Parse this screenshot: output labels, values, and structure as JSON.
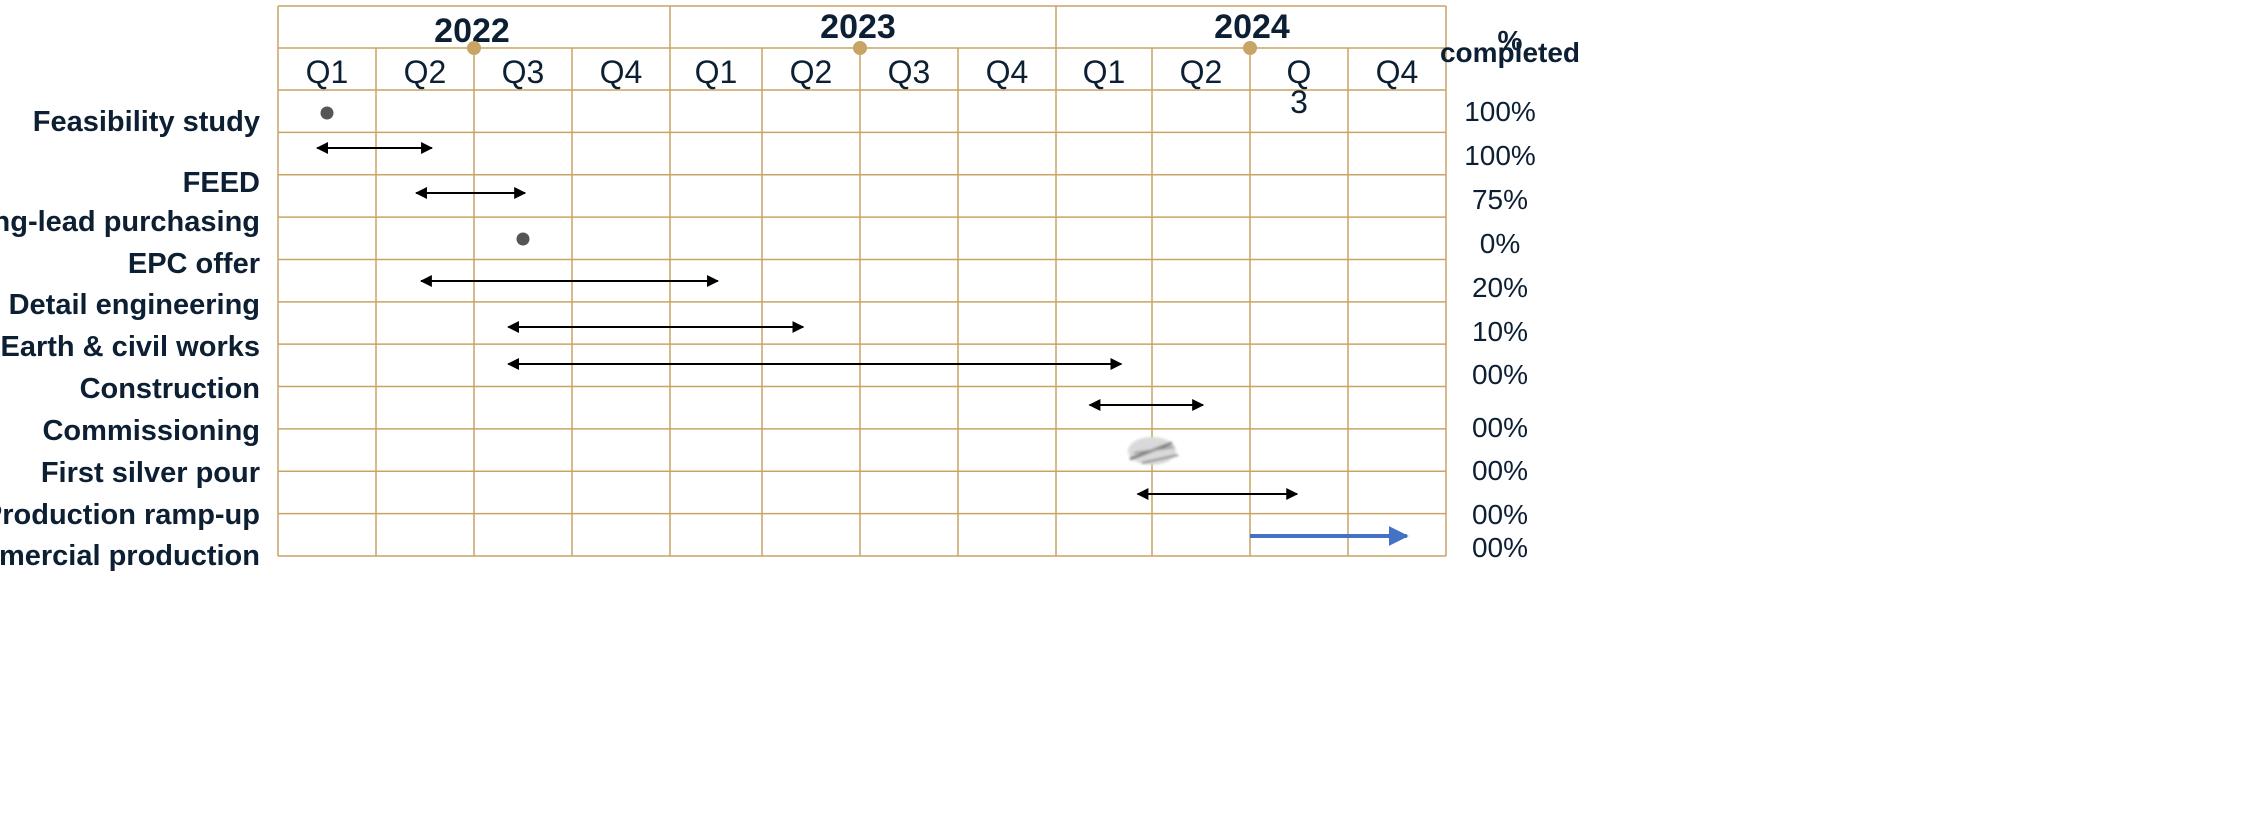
{
  "chart_data": {
    "type": "gantt",
    "title": "",
    "years": [
      "2022",
      "2023",
      "2024"
    ],
    "quarters": [
      "Q1",
      "Q2",
      "Q3",
      "Q4",
      "Q1",
      "Q2",
      "Q3",
      "Q4",
      "Q1",
      "Q2",
      "Q",
      "Q4"
    ],
    "quarter_extra": {
      "10": "3"
    },
    "percent_header": {
      "top": "%",
      "bottom": "completed"
    },
    "percent_values": [
      "100%",
      "100%",
      "75%",
      "0%",
      "20%",
      "10%",
      "00%",
      "00%",
      "00%",
      "00%",
      "00%"
    ],
    "tasks": [
      {
        "label": "Feasibility study",
        "type": "milestone",
        "at": 0.5
      },
      {
        "label": "FEED",
        "type": "range",
        "start": 0.4,
        "end": 1.57
      },
      {
        "label": "Long-lead purchasing",
        "type": "range",
        "start": 1.41,
        "end": 2.52
      },
      {
        "label": "EPC offer",
        "type": "milestone",
        "at": 2.5
      },
      {
        "label": "Detail engineering",
        "type": "range",
        "start": 1.46,
        "end": 4.52
      },
      {
        "label": "Earth & civil works",
        "type": "range",
        "start": 2.35,
        "end": 5.42
      },
      {
        "label": "Construction",
        "type": "range",
        "start": 2.35,
        "end": 8.68
      },
      {
        "label": "Commissioning",
        "type": "range",
        "start": 8.35,
        "end": 9.52
      },
      {
        "label": "First silver pour",
        "type": "milestone",
        "at": 9.0
      },
      {
        "label": "Production ramp-up",
        "type": "range",
        "start": 8.85,
        "end": 10.48
      },
      {
        "label": "Commercial production",
        "type": "range",
        "start": 10.0,
        "end": 11.6,
        "highlight": true
      }
    ],
    "colors": {
      "grid": "#c8a465",
      "text": "#0d1f33",
      "arrow": "#000000",
      "highlight_arrow": "#4472c4",
      "milestone": "#555555",
      "year_marker": "#c8a465"
    }
  }
}
